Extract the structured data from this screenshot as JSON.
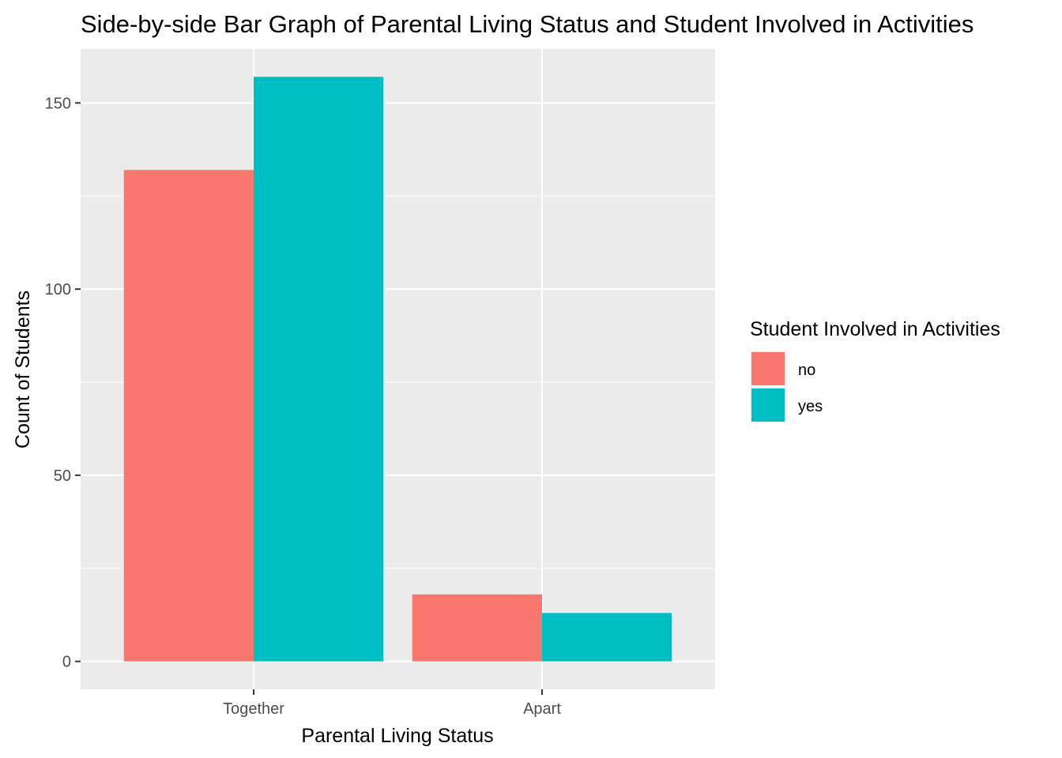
{
  "chart_data": {
    "type": "bar",
    "title": "Side-by-side Bar Graph of Parental Living Status and Student Involved in Activities",
    "xlabel": "Parental Living Status",
    "ylabel": "Count of Students",
    "categories": [
      "Together",
      "Apart"
    ],
    "series": [
      {
        "name": "no",
        "values": [
          132,
          18
        ],
        "color": "#F8766D"
      },
      {
        "name": "yes",
        "values": [
          157,
          13
        ],
        "color": "#00BFC4"
      }
    ],
    "ylim": [
      -7.5,
      164.5
    ],
    "yticks": [
      0,
      50,
      100,
      150
    ],
    "grid": true,
    "legend": {
      "title": "Student Involved in Activities",
      "position": "right"
    },
    "colors": {
      "panel_background": "#EBEBEB",
      "grid_major": "#FFFFFF",
      "tick_text": "#4D4D4D",
      "tick_mark": "#333333"
    }
  }
}
